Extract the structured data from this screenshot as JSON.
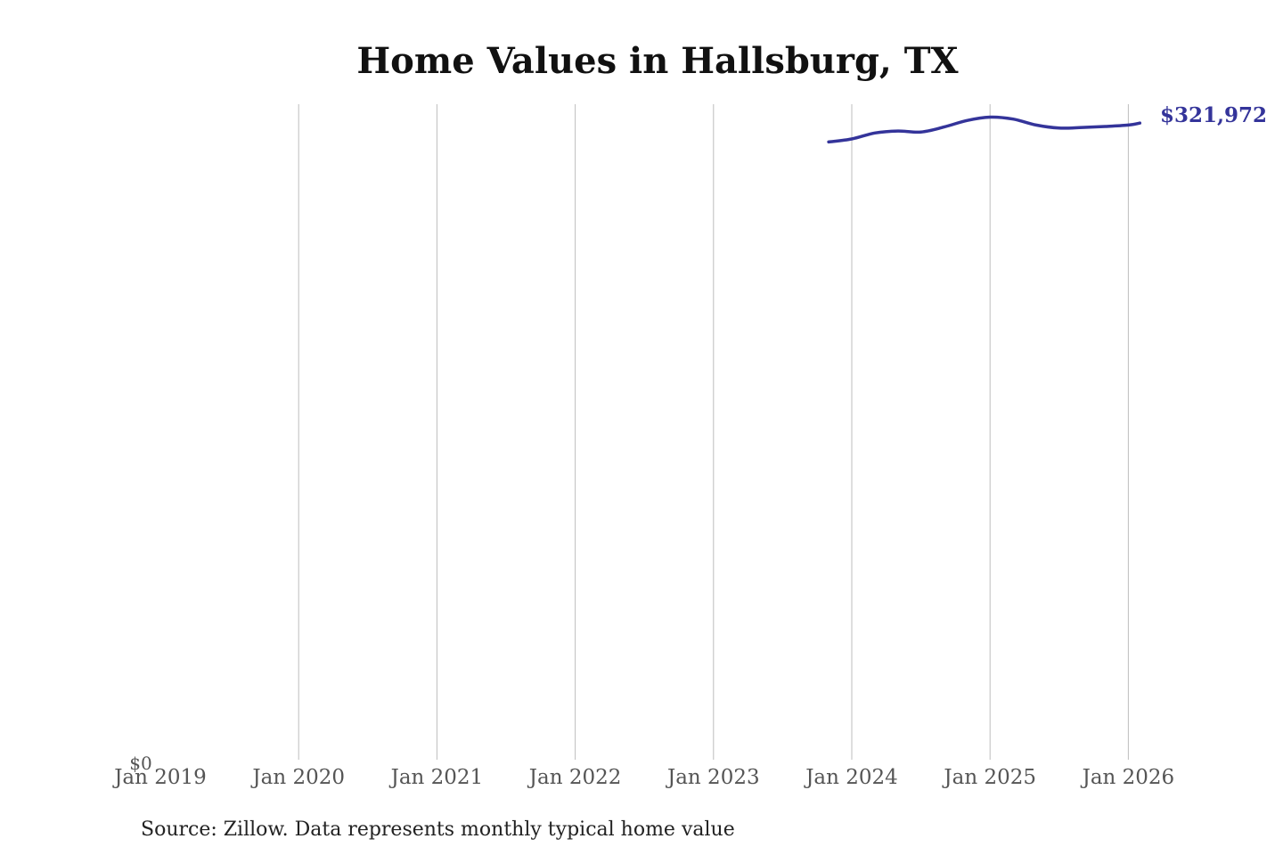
{
  "chart_data": {
    "type": "line",
    "title": "Home Values in Hallsburg, TX",
    "xlabel": "",
    "ylabel": "",
    "x_ticks": [
      "Jan 2019",
      "Jan 2020",
      "Jan 2021",
      "Jan 2022",
      "Jan 2023",
      "Jan 2024",
      "Jan 2025",
      "Jan 2026"
    ],
    "y_ticks": [
      "$0"
    ],
    "ylim": [
      0,
      330000
    ],
    "grid": "vertical",
    "series": [
      {
        "color": "#34349a",
        "points": [
          {
            "x": "2023-11",
            "y": 311000
          },
          {
            "x": "2024-01",
            "y": 312500
          },
          {
            "x": "2024-03",
            "y": 315500
          },
          {
            "x": "2024-05",
            "y": 316500
          },
          {
            "x": "2024-07",
            "y": 316000
          },
          {
            "x": "2024-09",
            "y": 318500
          },
          {
            "x": "2024-11",
            "y": 321800
          },
          {
            "x": "2025-01",
            "y": 323500
          },
          {
            "x": "2025-03",
            "y": 322500
          },
          {
            "x": "2025-05",
            "y": 319500
          },
          {
            "x": "2025-07",
            "y": 318000
          },
          {
            "x": "2025-09",
            "y": 318300
          },
          {
            "x": "2025-11",
            "y": 318800
          },
          {
            "x": "2026-01",
            "y": 319500
          },
          {
            "x": "2026-02",
            "y": 320500
          }
        ],
        "end_label": "$321,972"
      }
    ]
  },
  "source_note": "Source: Zillow. Data represents monthly typical home value"
}
